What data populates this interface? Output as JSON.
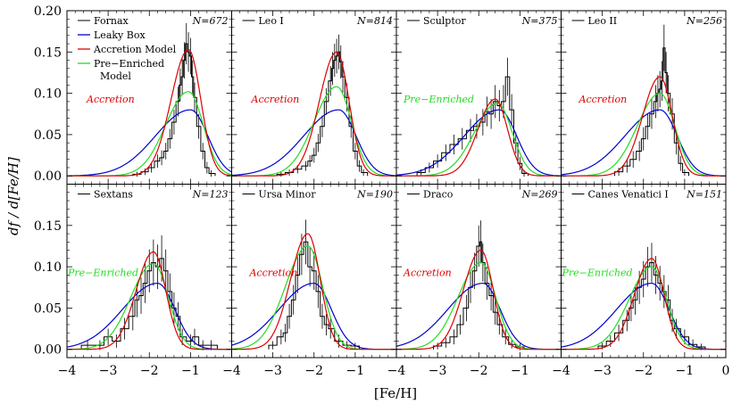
{
  "figure": {
    "xlabel": "[Fe/H]",
    "ylabel": "df / d[Fe/H]",
    "xticks": [
      "−4",
      "−3",
      "−2",
      "−1",
      "0"
    ],
    "yticks": [
      "0.00",
      "0.05",
      "0.10",
      "0.15",
      "0.20"
    ]
  },
  "legend": [
    {
      "label": "Fornax",
      "color": "#000000",
      "kind": "galaxy"
    },
    {
      "label": "Leaky Box",
      "color": "#0000cc",
      "kind": "model"
    },
    {
      "label": "Accretion Model",
      "color": "#dd0000",
      "kind": "model"
    },
    {
      "label": "Pre−Enriched",
      "label2": "Model",
      "color": "#22dd22",
      "kind": "model"
    }
  ],
  "colors": {
    "data": "#000000",
    "leaky": "#0000cc",
    "accretion": "#dd0000",
    "preenriched": "#22dd22"
  },
  "chart_data": [
    {
      "type": "line",
      "galaxy": "Fornax",
      "n_label": "N=672",
      "best_model": "Accretion",
      "best_color": "#dd0000",
      "xlim": [
        -4,
        0
      ],
      "ylim": [
        -0.01,
        0.2
      ],
      "models": {
        "leaky": {
          "peak": -1.0,
          "peak_y": 0.08
        },
        "accretion": {
          "peak": -1.05,
          "peak_y": 0.153
        },
        "preenriched": {
          "peak": -1.05,
          "peak_y": 0.102
        }
      },
      "hist_x": [
        -2.3,
        -2.1,
        -1.95,
        -1.8,
        -1.7,
        -1.6,
        -1.5,
        -1.4,
        -1.3,
        -1.25,
        -1.2,
        -1.15,
        -1.1,
        -1.05,
        -1.0,
        -0.95,
        -0.9,
        -0.8,
        -0.7,
        -0.6,
        -0.5
      ],
      "hist_y": [
        0.002,
        0.005,
        0.01,
        0.018,
        0.022,
        0.03,
        0.045,
        0.065,
        0.09,
        0.11,
        0.12,
        0.14,
        0.16,
        0.15,
        0.145,
        0.12,
        0.095,
        0.06,
        0.03,
        0.01,
        0.003
      ],
      "hist_err": [
        0.003,
        0.004,
        0.006,
        0.008,
        0.009,
        0.01,
        0.012,
        0.015,
        0.018,
        0.02,
        0.022,
        0.022,
        0.025,
        0.024,
        0.022,
        0.02,
        0.018,
        0.015,
        0.01,
        0.007,
        0.004
      ]
    },
    {
      "type": "line",
      "galaxy": "Leo I",
      "n_label": "N=814",
      "best_model": "Accretion",
      "best_color": "#dd0000",
      "xlim": [
        -4,
        0
      ],
      "ylim": [
        -0.01,
        0.2
      ],
      "models": {
        "leaky": {
          "peak": -1.4,
          "peak_y": 0.08
        },
        "accretion": {
          "peak": -1.45,
          "peak_y": 0.15
        },
        "preenriched": {
          "peak": -1.45,
          "peak_y": 0.108
        }
      },
      "hist_x": [
        -2.8,
        -2.6,
        -2.4,
        -2.2,
        -2.1,
        -2.0,
        -1.9,
        -1.8,
        -1.7,
        -1.6,
        -1.55,
        -1.5,
        -1.45,
        -1.4,
        -1.35,
        -1.3,
        -1.2,
        -1.1,
        -1.0,
        -0.9,
        -0.8
      ],
      "hist_y": [
        0.002,
        0.004,
        0.008,
        0.012,
        0.018,
        0.025,
        0.04,
        0.06,
        0.09,
        0.115,
        0.13,
        0.14,
        0.145,
        0.15,
        0.138,
        0.12,
        0.095,
        0.06,
        0.03,
        0.012,
        0.004
      ],
      "hist_err": [
        0.003,
        0.004,
        0.005,
        0.006,
        0.007,
        0.009,
        0.011,
        0.013,
        0.016,
        0.018,
        0.02,
        0.02,
        0.021,
        0.021,
        0.02,
        0.019,
        0.017,
        0.014,
        0.01,
        0.007,
        0.004
      ]
    },
    {
      "type": "line",
      "galaxy": "Sculptor",
      "n_label": "N=375",
      "best_model": "Pre−Enriched",
      "best_color": "#22dd22",
      "xlim": [
        -4,
        0
      ],
      "ylim": [
        -0.01,
        0.2
      ],
      "models": {
        "leaky": {
          "peak": -1.5,
          "peak_y": 0.08
        },
        "accretion": {
          "peak": -1.6,
          "peak_y": 0.093
        },
        "preenriched": {
          "peak": -1.55,
          "peak_y": 0.088
        }
      },
      "hist_x": [
        -3.4,
        -3.2,
        -3.0,
        -2.8,
        -2.6,
        -2.4,
        -2.2,
        -2.05,
        -1.9,
        -1.8,
        -1.7,
        -1.6,
        -1.5,
        -1.4,
        -1.3,
        -1.2,
        -1.1,
        -1.0,
        -0.9
      ],
      "hist_y": [
        0.004,
        0.01,
        0.018,
        0.028,
        0.038,
        0.045,
        0.055,
        0.06,
        0.065,
        0.078,
        0.075,
        0.09,
        0.085,
        0.09,
        0.12,
        0.08,
        0.04,
        0.015,
        0.003
      ],
      "hist_err": [
        0.004,
        0.006,
        0.008,
        0.01,
        0.012,
        0.013,
        0.014,
        0.015,
        0.016,
        0.018,
        0.018,
        0.02,
        0.019,
        0.02,
        0.023,
        0.019,
        0.013,
        0.008,
        0.004
      ]
    },
    {
      "type": "line",
      "galaxy": "Leo II",
      "n_label": "N=256",
      "best_model": "Accretion",
      "best_color": "#dd0000",
      "xlim": [
        -4,
        0
      ],
      "ylim": [
        -0.01,
        0.2
      ],
      "models": {
        "leaky": {
          "peak": -1.6,
          "peak_y": 0.08
        },
        "accretion": {
          "peak": -1.6,
          "peak_y": 0.12
        },
        "preenriched": {
          "peak": -1.6,
          "peak_y": 0.1
        }
      },
      "hist_x": [
        -2.6,
        -2.4,
        -2.25,
        -2.1,
        -2.0,
        -1.9,
        -1.8,
        -1.7,
        -1.65,
        -1.6,
        -1.55,
        -1.5,
        -1.45,
        -1.4,
        -1.3,
        -1.2,
        -1.1,
        -1.0
      ],
      "hist_y": [
        0.005,
        0.012,
        0.02,
        0.03,
        0.045,
        0.06,
        0.075,
        0.09,
        0.1,
        0.105,
        0.115,
        0.155,
        0.125,
        0.1,
        0.075,
        0.04,
        0.015,
        0.004
      ],
      "hist_err": [
        0.005,
        0.008,
        0.01,
        0.012,
        0.014,
        0.016,
        0.018,
        0.02,
        0.022,
        0.022,
        0.024,
        0.028,
        0.025,
        0.022,
        0.019,
        0.014,
        0.009,
        0.004
      ]
    },
    {
      "type": "line",
      "galaxy": "Sextans",
      "n_label": "N=123",
      "best_model": "Pre−Enriched",
      "best_color": "#22dd22",
      "xlim": [
        -4,
        0
      ],
      "ylim": [
        -0.01,
        0.2
      ],
      "models": {
        "leaky": {
          "peak": -1.8,
          "peak_y": 0.08
        },
        "accretion": {
          "peak": -1.9,
          "peak_y": 0.118
        },
        "preenriched": {
          "peak": -1.9,
          "peak_y": 0.104
        }
      },
      "hist_x": [
        -3.5,
        -3.2,
        -3.0,
        -2.8,
        -2.6,
        -2.4,
        -2.3,
        -2.2,
        -2.1,
        -2.0,
        -1.9,
        -1.8,
        -1.7,
        -1.6,
        -1.5,
        -1.4,
        -1.3,
        -1.2,
        -1.0,
        -0.9,
        -0.7,
        -0.5
      ],
      "hist_y": [
        0.005,
        0.005,
        0.015,
        0.01,
        0.025,
        0.04,
        0.06,
        0.065,
        0.08,
        0.095,
        0.105,
        0.1,
        0.11,
        0.095,
        0.07,
        0.05,
        0.04,
        0.015,
        0.01,
        0.015,
        0.005,
        0.005
      ],
      "hist_err": [
        0.006,
        0.006,
        0.01,
        0.008,
        0.013,
        0.017,
        0.021,
        0.022,
        0.024,
        0.026,
        0.028,
        0.027,
        0.028,
        0.026,
        0.022,
        0.019,
        0.017,
        0.01,
        0.008,
        0.01,
        0.006,
        0.006
      ]
    },
    {
      "type": "line",
      "galaxy": "Ursa Minor",
      "n_label": "N=190",
      "best_model": "Accretion",
      "best_color": "#dd0000",
      "xlim": [
        -4,
        0
      ],
      "ylim": [
        -0.01,
        0.2
      ],
      "models": {
        "leaky": {
          "peak": -2.0,
          "peak_y": 0.08
        },
        "accretion": {
          "peak": -2.15,
          "peak_y": 0.14
        },
        "preenriched": {
          "peak": -2.15,
          "peak_y": 0.125
        }
      },
      "hist_x": [
        -3.0,
        -2.8,
        -2.7,
        -2.6,
        -2.5,
        -2.4,
        -2.3,
        -2.2,
        -2.1,
        -2.0,
        -1.9,
        -1.8,
        -1.7,
        -1.6,
        -1.4,
        -1.2,
        -1.0
      ],
      "hist_y": [
        0.005,
        0.015,
        0.02,
        0.04,
        0.06,
        0.09,
        0.115,
        0.13,
        0.1,
        0.095,
        0.07,
        0.04,
        0.03,
        0.025,
        0.01,
        0.005,
        0.004
      ],
      "hist_err": [
        0.005,
        0.009,
        0.011,
        0.015,
        0.018,
        0.022,
        0.025,
        0.027,
        0.024,
        0.023,
        0.02,
        0.015,
        0.013,
        0.012,
        0.008,
        0.005,
        0.004
      ]
    },
    {
      "type": "line",
      "galaxy": "Draco",
      "n_label": "N=269",
      "best_model": "Accretion",
      "best_color": "#dd0000",
      "xlim": [
        -4,
        0
      ],
      "ylim": [
        -0.01,
        0.2
      ],
      "models": {
        "leaky": {
          "peak": -1.9,
          "peak_y": 0.08
        },
        "accretion": {
          "peak": -1.95,
          "peak_y": 0.12
        },
        "preenriched": {
          "peak": -1.95,
          "peak_y": 0.105
        }
      },
      "hist_x": [
        -3.0,
        -2.8,
        -2.6,
        -2.45,
        -2.3,
        -2.2,
        -2.1,
        -2.0,
        -1.95,
        -1.9,
        -1.8,
        -1.7,
        -1.6,
        -1.5,
        -1.35,
        -1.2,
        -1.0
      ],
      "hist_y": [
        0.004,
        0.008,
        0.015,
        0.03,
        0.05,
        0.075,
        0.095,
        0.125,
        0.13,
        0.105,
        0.08,
        0.065,
        0.045,
        0.03,
        0.015,
        0.006,
        0.003
      ],
      "hist_err": [
        0.004,
        0.006,
        0.009,
        0.012,
        0.016,
        0.019,
        0.022,
        0.025,
        0.026,
        0.023,
        0.02,
        0.018,
        0.015,
        0.012,
        0.009,
        0.005,
        0.004
      ]
    },
    {
      "type": "line",
      "galaxy": "Canes Venatici I",
      "n_label": "N=151",
      "best_model": "Pre−Enriched",
      "best_color": "#22dd22",
      "xlim": [
        -4,
        0
      ],
      "ylim": [
        -0.01,
        0.2
      ],
      "models": {
        "leaky": {
          "peak": -1.8,
          "peak_y": 0.08
        },
        "accretion": {
          "peak": -1.8,
          "peak_y": 0.11
        },
        "preenriched": {
          "peak": -1.8,
          "peak_y": 0.1
        }
      },
      "hist_x": [
        -3.0,
        -2.8,
        -2.6,
        -2.4,
        -2.3,
        -2.2,
        -2.1,
        -2.0,
        -1.9,
        -1.8,
        -1.7,
        -1.6,
        -1.5,
        -1.4,
        -1.3,
        -1.2,
        -1.0,
        -0.8,
        -0.6
      ],
      "hist_y": [
        0.004,
        0.01,
        0.02,
        0.035,
        0.05,
        0.06,
        0.075,
        0.085,
        0.1,
        0.105,
        0.09,
        0.08,
        0.07,
        0.06,
        0.035,
        0.025,
        0.015,
        0.006,
        0.003
      ],
      "hist_err": [
        0.004,
        0.007,
        0.01,
        0.013,
        0.016,
        0.018,
        0.02,
        0.022,
        0.024,
        0.024,
        0.023,
        0.021,
        0.02,
        0.018,
        0.014,
        0.012,
        0.009,
        0.006,
        0.004
      ]
    }
  ]
}
